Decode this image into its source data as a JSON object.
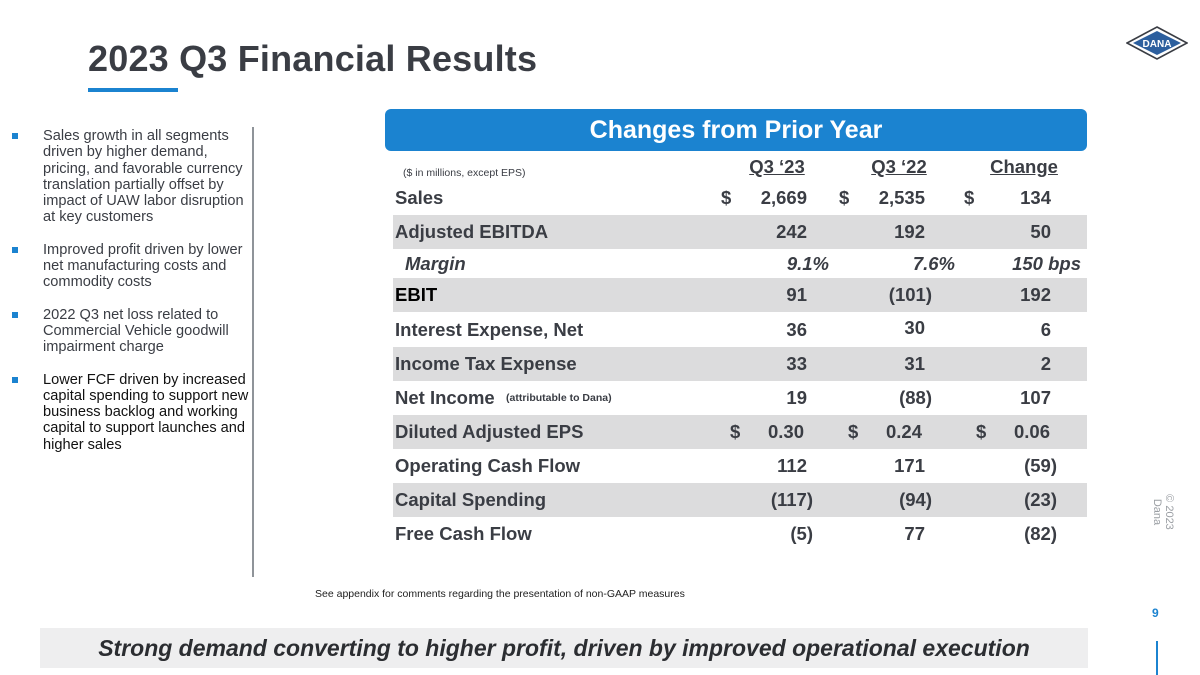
{
  "title": "2023 Q3 Financial Results",
  "logo_text": "DANA",
  "bullets": [
    "Sales growth in all segments driven by higher demand, pricing, and favorable currency translation partially offset by impact of UAW labor disruption at key customers",
    "Improved profit driven by lower net manufacturing costs and commodity costs",
    "2022 Q3 net loss related to Commercial Vehicle goodwill impairment charge",
    "Lower FCF driven by increased capital spending to support new business backlog and working capital to support launches and higher sales"
  ],
  "table": {
    "banner": "Changes from Prior Year",
    "units_note": "($ in millions, except EPS)",
    "columns": [
      "Q3 ‘23",
      "Q3 ‘22",
      "Change"
    ],
    "rows": [
      {
        "label": "Sales",
        "q323": "2,669",
        "q322": "2,535",
        "change": "134",
        "dollar_signs": [
          "$",
          "$",
          "$"
        ]
      },
      {
        "label": "Adjusted EBITDA",
        "q323": "242",
        "q322": "192",
        "change": "50"
      },
      {
        "label": "Margin",
        "q323": "9.1%",
        "q322": "7.6%",
        "change": "150 bps"
      },
      {
        "label": "EBIT",
        "q323": "91",
        "q322": "(101)",
        "change": "192"
      },
      {
        "label": "Interest Expense, Net",
        "q323": "36",
        "q322": "30",
        "change": "6"
      },
      {
        "label": "Income Tax Expense",
        "q323": "33",
        "q322": "31",
        "change": "2"
      },
      {
        "label": "Net Income",
        "note": "(attributable to Dana)",
        "q323": "19",
        "q322": "(88)",
        "change": "107"
      },
      {
        "label": "Diluted Adjusted EPS",
        "q323": "0.30",
        "q322": "0.24",
        "change": "0.06",
        "dollar_signs": [
          "$",
          "$",
          "$"
        ]
      },
      {
        "label": "Operating Cash Flow",
        "q323": "112",
        "q322": "171",
        "change": "(59)"
      },
      {
        "label": "Capital Spending",
        "q323": "(117)",
        "q322": "(94)",
        "change": "(23)"
      },
      {
        "label": "Free Cash Flow",
        "q323": "(5)",
        "q322": "77",
        "change": "(82)"
      }
    ]
  },
  "footnote": "See appendix for comments regarding the presentation of non-GAAP measures",
  "copyright": "© 2023 Dana",
  "page_number": "9",
  "bottom_banner": "Strong demand converting to higher profit, driven by improved operational execution",
  "colors": {
    "accent": "#1b83d0",
    "text": "#3a3d44",
    "shade": "#dcdcdd"
  }
}
